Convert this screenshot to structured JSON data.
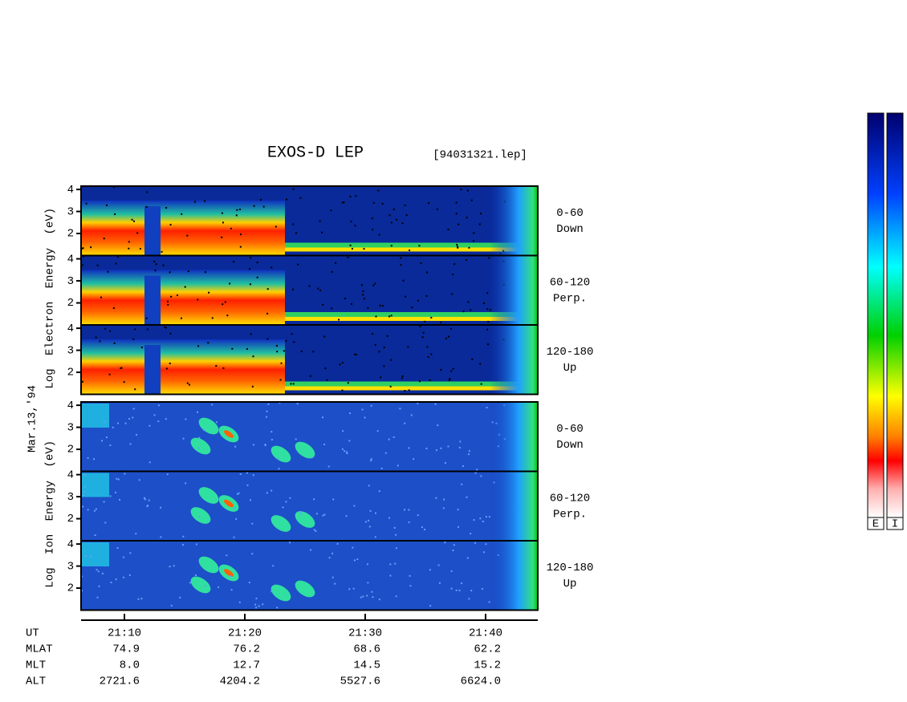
{
  "chart_data": {
    "type": "spectrogram",
    "title": "EXOS-D LEP",
    "file_label": "[94031321.lep]",
    "date_label": "Mar.13,'94",
    "groups": [
      {
        "ylabel": "Log Electron Energy (eV)",
        "colorbar_label": "E",
        "panels": [
          {
            "label": [
              "0-60",
              "Down"
            ]
          },
          {
            "label": [
              "60-120",
              "Perp."
            ]
          },
          {
            "label": [
              "120-180",
              "Up"
            ]
          }
        ]
      },
      {
        "ylabel": "Log Ion Energy (eV)",
        "colorbar_label": "I",
        "panels": [
          {
            "label": [
              "0-60",
              "Down"
            ]
          },
          {
            "label": [
              "60-120",
              "Perp."
            ]
          },
          {
            "label": [
              "120-180",
              "Up"
            ]
          }
        ]
      }
    ],
    "ylim": [
      1,
      4.15
    ],
    "yticks": [
      2,
      3,
      4
    ],
    "x_label": "UT",
    "xlim": [
      "21:06:24",
      "21:44:20"
    ],
    "xticks": [
      "21:10",
      "21:20",
      "21:30",
      "21:40"
    ],
    "ephemeris": [
      {
        "name": "MLAT",
        "values": [
          "74.9",
          "76.2",
          "68.6",
          "62.2"
        ]
      },
      {
        "name": "MLT",
        "values": [
          "8.0",
          "12.7",
          "14.5",
          "15.2"
        ]
      },
      {
        "name": "ALT",
        "values": [
          "2721.6",
          "4204.2",
          "5527.6",
          "6624.0"
        ]
      }
    ]
  }
}
